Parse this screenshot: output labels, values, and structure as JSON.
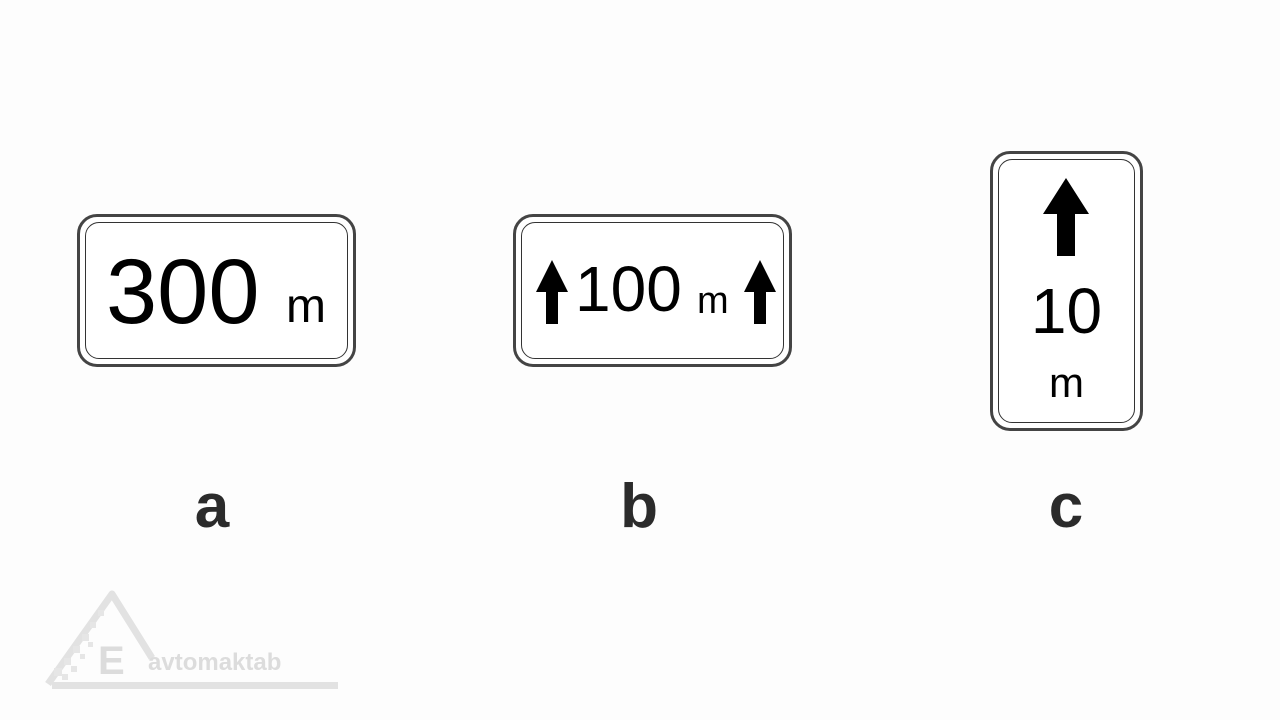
{
  "signs": {
    "a": {
      "number": "300",
      "unit": "m",
      "caption": "a"
    },
    "b": {
      "number": "100",
      "unit": "m",
      "caption": "b"
    },
    "c": {
      "number": "10",
      "unit": "m",
      "caption": "c"
    }
  },
  "watermark": {
    "letter": "E",
    "text": "avtomaktab"
  },
  "colors": {
    "border": "#444444",
    "caption": "#2b2b2b",
    "watermark": "#dcdcdc"
  },
  "icons": {
    "arrow": "arrow-up-icon",
    "logo": "avtomaktab-logo"
  }
}
